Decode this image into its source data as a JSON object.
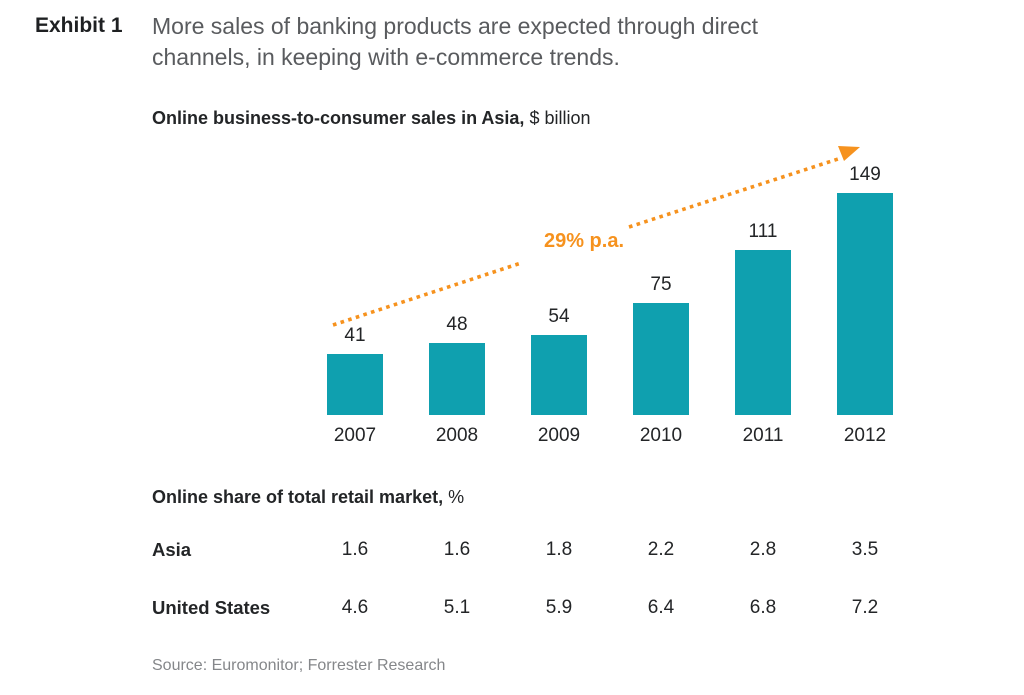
{
  "exhibit": {
    "label": "Exhibit 1",
    "title_lines": [
      "More sales of banking products are expected through direct",
      "channels, in keeping with e-commerce trends."
    ]
  },
  "chart": {
    "title_bold": "Online business-to-consumer sales in Asia,",
    "title_unit": " $ billion",
    "growth_label": "29% p.a."
  },
  "table": {
    "title_bold": "Online share of total retail market,",
    "title_unit": " %"
  },
  "source": "Source: Euromonitor; Forrester Research",
  "colors": {
    "bar_teal": "#0FA0AF",
    "accent_orange": "#F6921E",
    "text_dark": "#232527",
    "title_gray": "#595B5E",
    "source_gray": "#85878A"
  },
  "chart_data": [
    {
      "type": "bar",
      "title": "Online business-to-consumer sales in Asia, $ billion",
      "ylabel": "$ billion",
      "categories": [
        "2007",
        "2008",
        "2009",
        "2010",
        "2011",
        "2012"
      ],
      "values": [
        41,
        48,
        54,
        75,
        111,
        149
      ],
      "annotation": "29% p.a.",
      "bar_color": "#0FA0AF",
      "grid": false,
      "value_labels": true
    },
    {
      "type": "table",
      "title": "Online share of total retail market, %",
      "categories": [
        "2007",
        "2008",
        "2009",
        "2010",
        "2011",
        "2012"
      ],
      "series": [
        {
          "name": "Asia",
          "values": [
            "1.6",
            "1.6",
            "1.8",
            "2.2",
            "2.8",
            "3.5"
          ]
        },
        {
          "name": "United States",
          "values": [
            "4.6",
            "5.1",
            "5.9",
            "6.4",
            "6.8",
            "7.2"
          ]
        }
      ]
    }
  ]
}
